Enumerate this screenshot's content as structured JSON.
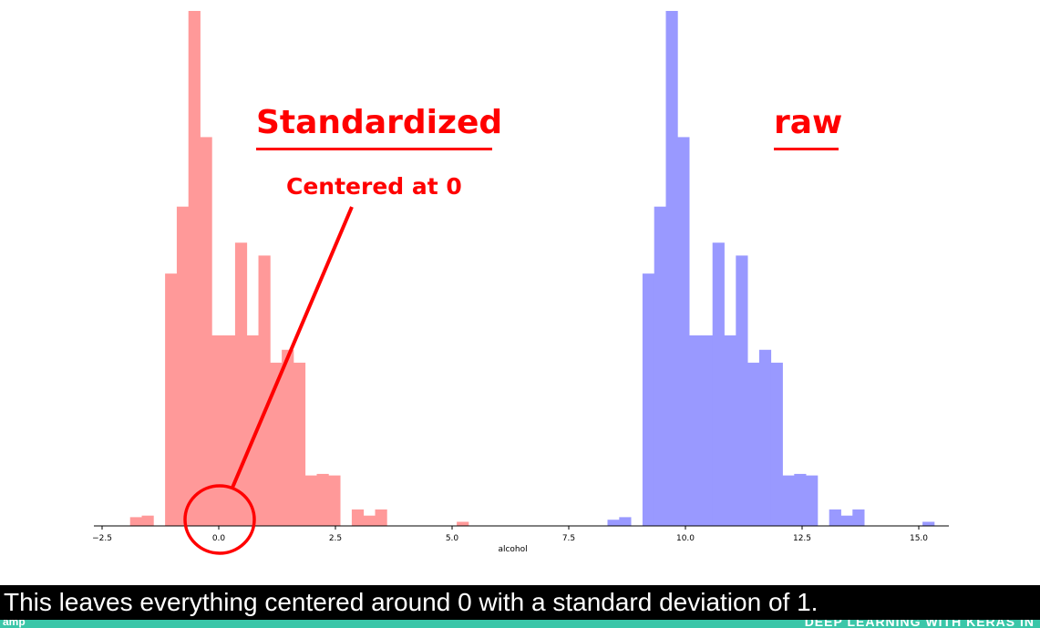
{
  "chart_data": {
    "type": "bar",
    "xlabel": "alcohol",
    "ylabel": "",
    "xlim": [
      -2.8,
      16.0
    ],
    "ylim": [
      0,
      1.0
    ],
    "xticks": [
      -2.5,
      0.0,
      2.5,
      5.0,
      7.5,
      10.0,
      12.5,
      15.0
    ],
    "xtick_labels": [
      "−2.5",
      "0.0",
      "2.5",
      "5.0",
      "7.5",
      "10.0",
      "12.5",
      "15.0"
    ],
    "grid": false,
    "series": [
      {
        "label_annotation": "Standardized",
        "color": "#ff9999",
        "bin_left": -1.9,
        "bin_width": 0.25,
        "values": [
          0.017,
          0.02,
          0.0,
          0.49,
          0.62,
          1.0,
          0.755,
          0.37,
          0.37,
          0.55,
          0.37,
          0.525,
          0.317,
          0.342,
          0.317,
          0.098,
          0.101,
          0.098,
          0.0,
          0.032,
          0.02,
          0.032,
          0.0,
          0.0,
          0.0,
          0.0,
          0.0,
          0.0,
          0.008
        ]
      },
      {
        "label_annotation": "raw",
        "color": "#9999ff",
        "bin_left": 8.33,
        "bin_width": 0.25,
        "values": [
          0.012,
          0.017,
          0.0,
          0.49,
          0.62,
          1.0,
          0.755,
          0.37,
          0.37,
          0.55,
          0.37,
          0.525,
          0.317,
          0.342,
          0.317,
          0.098,
          0.101,
          0.098,
          0.0,
          0.032,
          0.02,
          0.032,
          0.0,
          0.0,
          0.0,
          0.0,
          0.0,
          0.008
        ]
      }
    ]
  },
  "annotations": {
    "standardized": "Standardized",
    "raw": "raw",
    "centered": "Centered at 0"
  },
  "caption": "This leaves everything centered around 0 with a standard deviation of 1.",
  "footer": {
    "left": "amp",
    "right": "DEEP LEARNING WITH KERAS IN"
  }
}
